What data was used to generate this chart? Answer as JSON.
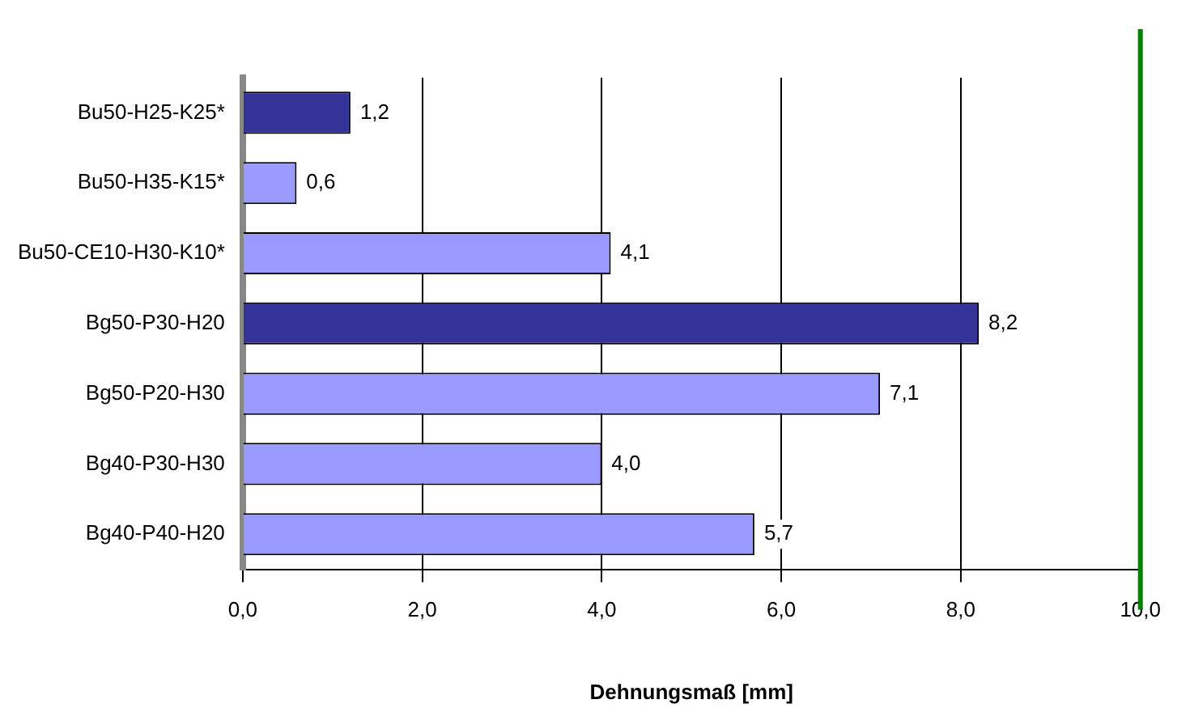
{
  "chart_data": {
    "type": "bar",
    "orientation": "horizontal",
    "xlabel": "Dehnungsmaß [mm]",
    "categories": [
      "Bu50-H25-K25*",
      "Bu50-H35-K15*",
      "Bu50-CE10-H30-K10*",
      "Bg50-P30-H20",
      "Bg50-P20-H30",
      "Bg40-P30-H30",
      "Bg40-P40-H20"
    ],
    "values": [
      1.2,
      0.6,
      4.1,
      8.2,
      7.1,
      4.0,
      5.7
    ],
    "value_labels": [
      "1,2",
      "0,6",
      "4,1",
      "8,2",
      "7,1",
      "4,0",
      "5,7"
    ],
    "colors": [
      "#333399",
      "#9999ff",
      "#9999ff",
      "#333399",
      "#9999ff",
      "#9999ff",
      "#9999ff"
    ],
    "xlim": [
      0,
      10
    ],
    "xticks": [
      {
        "value": 0,
        "label": "0,0"
      },
      {
        "value": 2,
        "label": "2,0"
      },
      {
        "value": 4,
        "label": "4,0"
      },
      {
        "value": 6,
        "label": "6,0"
      },
      {
        "value": 8,
        "label": "8,0"
      },
      {
        "value": 10,
        "label": "10,0"
      }
    ],
    "grid": "x",
    "legend": false,
    "ref_lines": [
      {
        "axis": "x",
        "value": 10,
        "color": "#008000"
      }
    ]
  }
}
